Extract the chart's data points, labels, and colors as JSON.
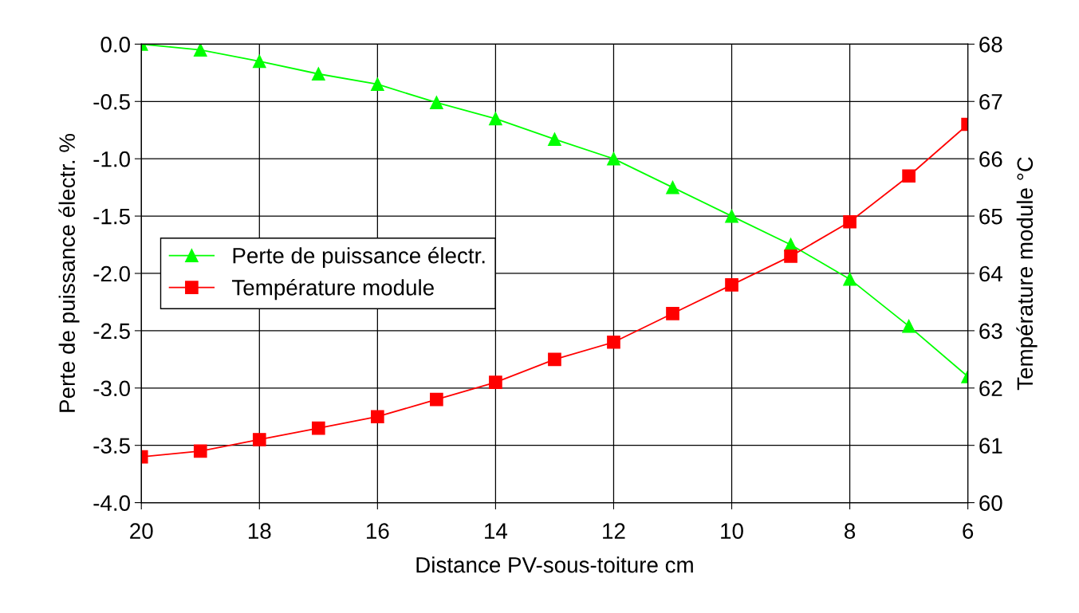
{
  "chart_data": {
    "type": "line",
    "xlabel": "Distance PV-sous-toiture cm",
    "ylabel": "Perte de puissance électr. %",
    "y2label": "Température module °C",
    "x": [
      20,
      19,
      18,
      17,
      16,
      15,
      14,
      13,
      12,
      11,
      10,
      9,
      8,
      7,
      6
    ],
    "series": [
      {
        "name": "Perte de puissance électr.",
        "color": "#00ff00",
        "marker": "triangle",
        "values": [
          0.0,
          -0.05,
          -0.15,
          -0.26,
          -0.35,
          -0.51,
          -0.65,
          -0.83,
          -1.0,
          -1.25,
          -1.5,
          -1.75,
          -2.05,
          -2.46,
          -2.9
        ]
      },
      {
        "name": "Température module",
        "color": "#ff0000",
        "marker": "square",
        "axis": "y2",
        "values": [
          60.8,
          60.9,
          61.1,
          61.3,
          61.5,
          61.8,
          62.1,
          62.5,
          62.8,
          63.3,
          63.8,
          64.3,
          64.9,
          65.7,
          66.6
        ]
      }
    ],
    "xlim": [
      20,
      6
    ],
    "xticks": [
      20,
      18,
      16,
      14,
      12,
      10,
      8,
      6
    ],
    "ylim": [
      -4,
      0
    ],
    "yticks": [
      {
        "value": -4,
        "label": "-4.0"
      },
      -3.5,
      {
        "value": -3,
        "label": "-3.0"
      },
      -2.5,
      {
        "value": -2,
        "label": "-2.0"
      },
      -1.5,
      {
        "value": -1,
        "label": "-1.0"
      },
      -0.5,
      {
        "value": 0,
        "label": "0.0"
      }
    ],
    "y2lim": [
      60,
      68
    ],
    "y2ticks": [
      60,
      61,
      62,
      63,
      64,
      65,
      66,
      67,
      68
    ],
    "grid": true,
    "legend": "center left",
    "line_style": "solid"
  }
}
